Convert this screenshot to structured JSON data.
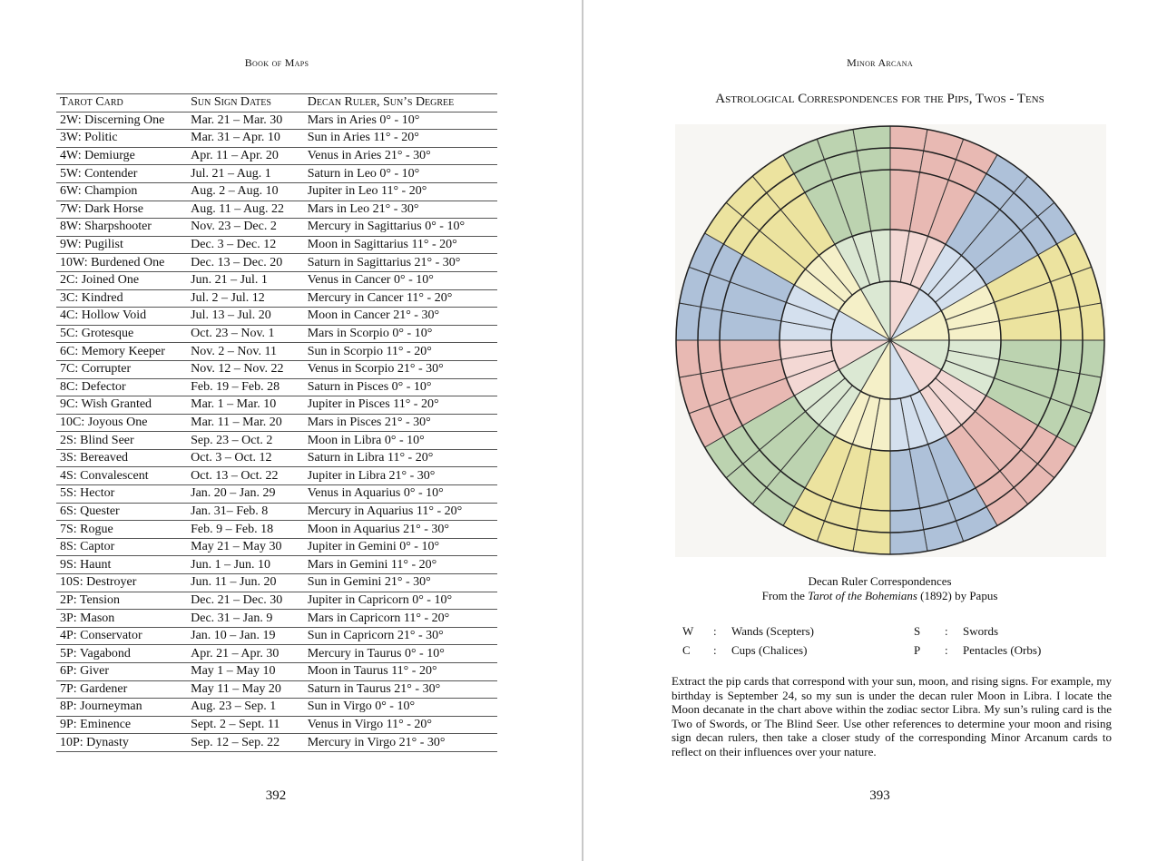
{
  "left": {
    "header": "Book of Maps",
    "table": {
      "columns": [
        "Tarot Card",
        "Sun Sign Dates",
        "Decan Ruler, Sun’s Degree"
      ],
      "rows": [
        [
          "2W: Discerning One",
          "Mar. 21 – Mar. 30",
          "Mars in Aries 0° - 10°"
        ],
        [
          "3W: Politic",
          "Mar. 31 – Apr. 10",
          "Sun in Aries 11° - 20°"
        ],
        [
          "4W: Demiurge",
          "Apr. 11 – Apr. 20",
          "Venus in Aries 21° - 30°"
        ],
        [
          "5W: Contender",
          "Jul. 21 – Aug. 1",
          "Saturn in Leo 0° - 10°"
        ],
        [
          "6W: Champion",
          "Aug. 2 – Aug. 10",
          "Jupiter in Leo 11° - 20°"
        ],
        [
          "7W: Dark Horse",
          "Aug. 11 – Aug. 22",
          "Mars in Leo 21° - 30°"
        ],
        [
          "8W: Sharpshooter",
          "Nov. 23 – Dec. 2",
          "Mercury in Sagittarius 0° - 10°"
        ],
        [
          "9W: Pugilist",
          "Dec. 3 – Dec. 12",
          "Moon in Sagittarius 11° - 20°"
        ],
        [
          "10W: Burdened One",
          "Dec. 13 – Dec. 20",
          "Saturn in Sagittarius 21° - 30°"
        ],
        [
          "2C: Joined One",
          "Jun. 21 – Jul. 1",
          "Venus in Cancer 0° - 10°"
        ],
        [
          "3C: Kindred",
          "Jul. 2 – Jul. 12",
          "Mercury in Cancer 11° - 20°"
        ],
        [
          "4C: Hollow Void",
          "Jul. 13 – Jul. 20",
          "Moon in Cancer 21° - 30°"
        ],
        [
          "5C: Grotesque",
          "Oct. 23 – Nov. 1",
          "Mars in Scorpio 0° - 10°"
        ],
        [
          "6C: Memory Keeper",
          "Nov. 2 – Nov. 11",
          "Sun in Scorpio 11° - 20°"
        ],
        [
          "7C: Corrupter",
          "Nov. 12 – Nov. 22",
          "Venus in Scorpio 21° - 30°"
        ],
        [
          "8C: Defector",
          "Feb. 19 – Feb. 28",
          "Saturn in Pisces 0° - 10°"
        ],
        [
          "9C: Wish Granted",
          "Mar. 1 – Mar. 10",
          "Jupiter in Pisces 11° - 20°"
        ],
        [
          "10C: Joyous One",
          "Mar. 11 – Mar. 20",
          "Mars in Pisces 21° - 30°"
        ],
        [
          "2S: Blind Seer",
          "Sep. 23 – Oct. 2",
          "Moon in Libra 0° - 10°"
        ],
        [
          "3S: Bereaved",
          "Oct. 3 – Oct. 12",
          "Saturn in Libra 11° - 20°"
        ],
        [
          "4S: Convalescent",
          "Oct. 13 – Oct. 22",
          "Jupiter in Libra 21° - 30°"
        ],
        [
          "5S: Hector",
          "Jan. 20 – Jan. 29",
          "Venus in Aquarius 0° - 10°"
        ],
        [
          "6S: Quester",
          "Jan. 31– Feb. 8",
          "Mercury in Aquarius 11° - 20°"
        ],
        [
          "7S: Rogue",
          "Feb. 9 – Feb. 18",
          "Moon in Aquarius 21° - 30°"
        ],
        [
          "8S: Captor",
          "May 21 – May 30",
          "Jupiter in Gemini 0° - 10°"
        ],
        [
          "9S: Haunt",
          "Jun. 1 – Jun. 10",
          "Mars in Gemini 11° - 20°"
        ],
        [
          "10S: Destroyer",
          "Jun. 11 – Jun. 20",
          "Sun in Gemini 21° - 30°"
        ],
        [
          "2P: Tension",
          "Dec. 21 – Dec. 30",
          "Jupiter in Capricorn 0° - 10°"
        ],
        [
          "3P: Mason",
          "Dec. 31 – Jan. 9",
          "Mars in Capricorn 11° - 20°"
        ],
        [
          "4P: Conservator",
          "Jan. 10 – Jan. 19",
          "Sun in Capricorn 21° - 30°"
        ],
        [
          "5P: Vagabond",
          "Apr. 21 – Apr. 30",
          "Mercury in Taurus 0° - 10°"
        ],
        [
          "6P: Giver",
          "May 1 – May 10",
          "Moon in Taurus 11° - 20°"
        ],
        [
          "7P: Gardener",
          "May 11 – May 20",
          "Saturn in Taurus 21° - 30°"
        ],
        [
          "8P: Journeyman",
          "Aug. 23 – Sep. 1",
          "Sun in Virgo 0° - 10°"
        ],
        [
          "9P: Eminence",
          "Sept. 2 – Sept. 11",
          "Venus in Virgo 11° - 20°"
        ],
        [
          "10P: Dynasty",
          "Sep. 12 – Sep. 22",
          "Mercury in Virgo 21° - 30°"
        ]
      ]
    },
    "page_number": "392"
  },
  "right": {
    "header": "Minor Arcana",
    "title": "Astrological Correspondences for the Pips, Twos - Tens",
    "caption": {
      "line1": "Decan Ruler Correspondences",
      "line2": [
        "From the",
        "Tarot of the Bohemians",
        "(1892) by Papus"
      ]
    },
    "legend": [
      {
        "key": "W",
        "sep": ":",
        "name": "Wands (Scepters)"
      },
      {
        "key": "S",
        "sep": ":",
        "name": "Swords"
      },
      {
        "key": "C",
        "sep": ":",
        "name": "Cups (Chalices)"
      },
      {
        "key": "P",
        "sep": ":",
        "name": "Pentacles (Orbs)"
      }
    ],
    "paragraph": "Extract the pip cards that correspond with your sun, moon, and rising signs. For example, my birthday is September 24, so my sun is under the decan ruler Moon in Libra. I locate the Moon decanate in the chart above within the zodiac sector Libra. My sun’s ruling card is the Two of Swords, or The Blind Seer. Use other references to determine your moon and rising sign decan rulers, then take a closer study of the corresponding Minor Arcanum cards to reflect on their influences over your nature.",
    "page_number": "393"
  }
}
